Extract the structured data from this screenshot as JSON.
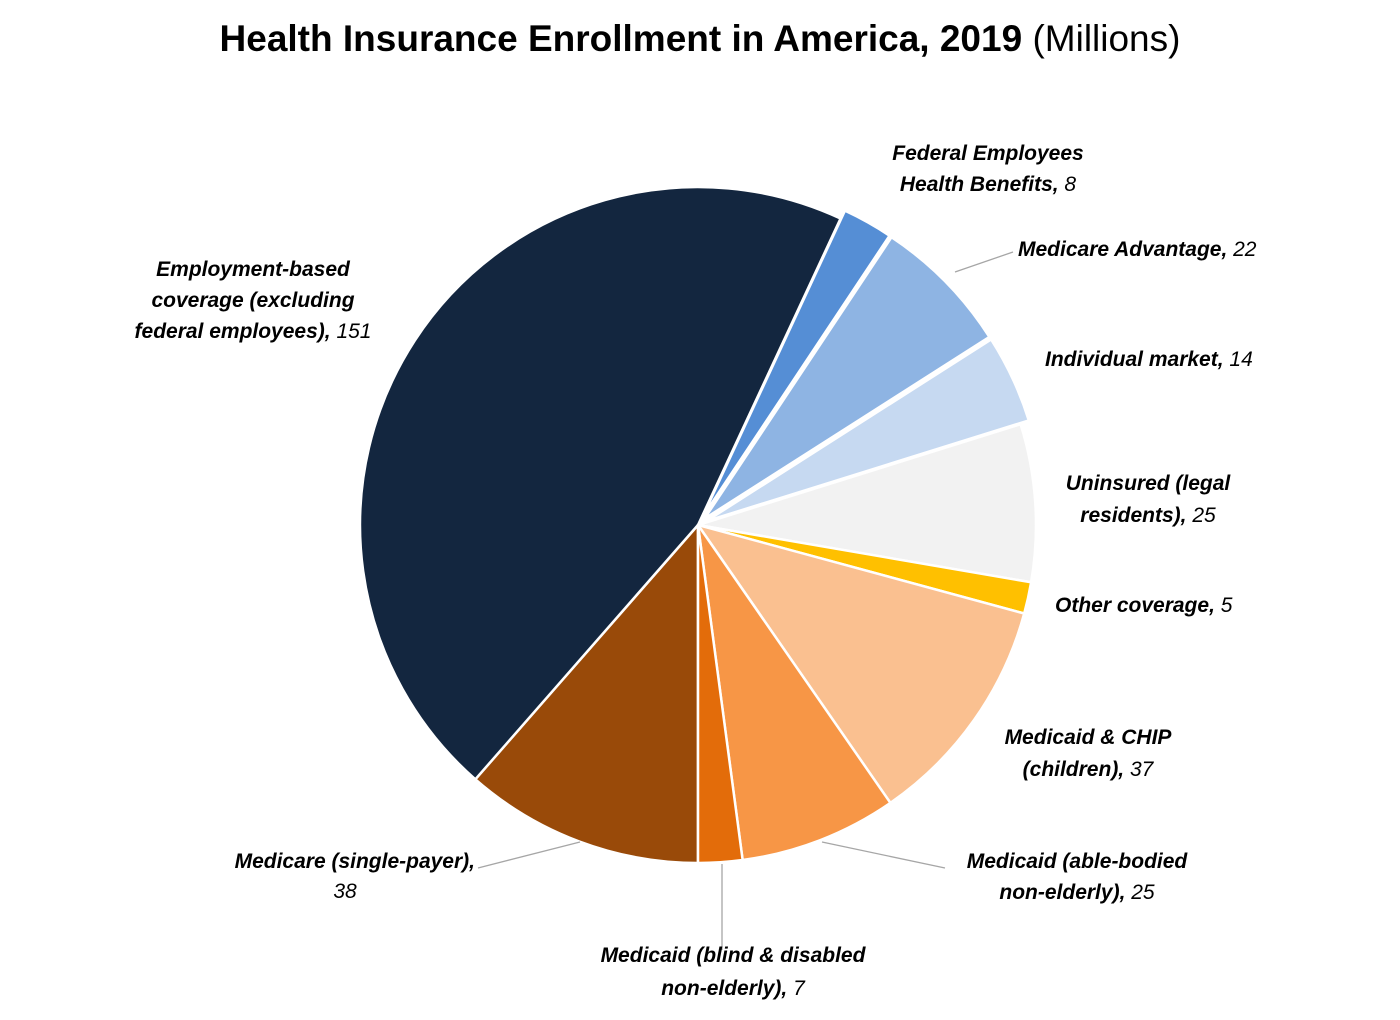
{
  "chart_data": {
    "type": "pie",
    "title": "Health Insurance Enrollment in America, 2019",
    "unit": "(Millions)",
    "start": "bottom, clockwise",
    "slices": [
      {
        "label": "Medicare (single-payer),",
        "value": 38,
        "color": "#994a09",
        "exploded": false
      },
      {
        "label": "Employment-based coverage (excluding federal employees),",
        "value": 151,
        "color": "#13263f",
        "exploded": false
      },
      {
        "label": "Federal Employees Health Benefits,",
        "value": 8,
        "color": "#558ed5",
        "exploded": true
      },
      {
        "label": "Medicare Advantage,",
        "value": 22,
        "color": "#8eb4e3",
        "exploded": true
      },
      {
        "label": "Individual market,",
        "value": 14,
        "color": "#c6d9f1",
        "exploded": true
      },
      {
        "label": "Uninsured (legal residents),",
        "value": 25,
        "color": "#f2f2f2",
        "exploded": false
      },
      {
        "label": "Other coverage,",
        "value": 5,
        "color": "#ffc000",
        "exploded": false
      },
      {
        "label": "Medicaid & CHIP (children),",
        "value": 37,
        "color": "#fac090",
        "exploded": false
      },
      {
        "label": "Medicaid (able-bodied non-elderly),",
        "value": 25,
        "color": "#f79646",
        "exploded": false
      },
      {
        "label": "Medicaid (blind & disabled non-elderly),",
        "value": 7,
        "color": "#e36c0a",
        "exploded": false
      }
    ]
  }
}
